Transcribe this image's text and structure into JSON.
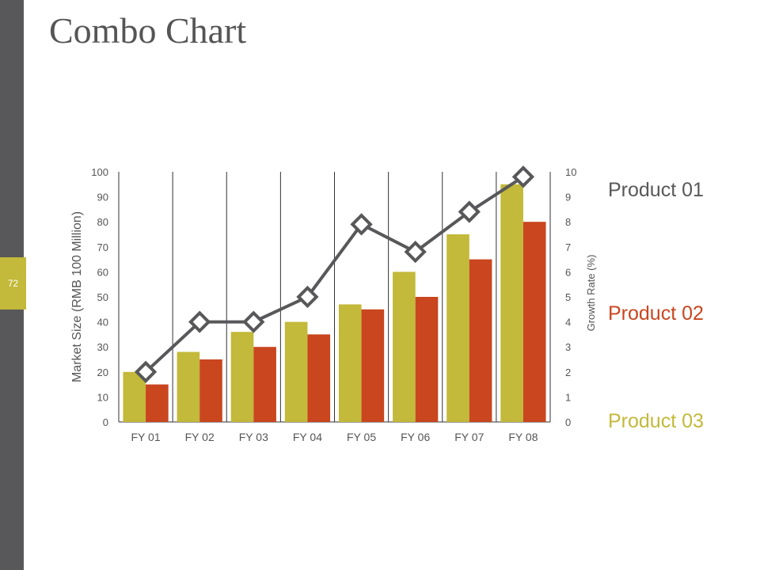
{
  "slide": {
    "title": "Combo Chart",
    "page_number": "72"
  },
  "colors": {
    "sidebar": "#58585a",
    "accent": "#c3b93a",
    "product01": "#58585a",
    "product02": "#c9461f",
    "product03": "#c3b93a"
  },
  "chart_data": {
    "type": "bar+line",
    "categories": [
      "FY 01",
      "FY 02",
      "FY 03",
      "FY 04",
      "FY 05",
      "FY 06",
      "FY 07",
      "FY 08"
    ],
    "ylabel": "Market Size (RMB 100 Million)",
    "y2label": "Growth Rate (%)",
    "ylim": [
      0,
      100
    ],
    "y2lim": [
      0,
      10
    ],
    "yticks": [
      "0",
      "10",
      "20",
      "30",
      "40",
      "50",
      "60",
      "70",
      "80",
      "90",
      "100"
    ],
    "y2ticks": [
      "0",
      "1",
      "2",
      "3",
      "4",
      "5",
      "6",
      "7",
      "8",
      "9",
      "10"
    ],
    "grid": "vertical category separators",
    "legend_placement": "right",
    "series": [
      {
        "name": "Product 01",
        "type": "line",
        "axis": "right",
        "values": [
          2,
          4,
          4,
          5,
          7.9,
          6.8,
          8.4,
          9.8
        ]
      },
      {
        "name": "Product 02",
        "type": "bar",
        "axis": "left",
        "values": [
          15,
          25,
          30,
          35,
          45,
          50,
          65,
          80
        ]
      },
      {
        "name": "Product 03",
        "type": "bar",
        "axis": "left",
        "values": [
          20,
          28,
          36,
          40,
          47,
          60,
          75,
          95
        ]
      }
    ]
  }
}
